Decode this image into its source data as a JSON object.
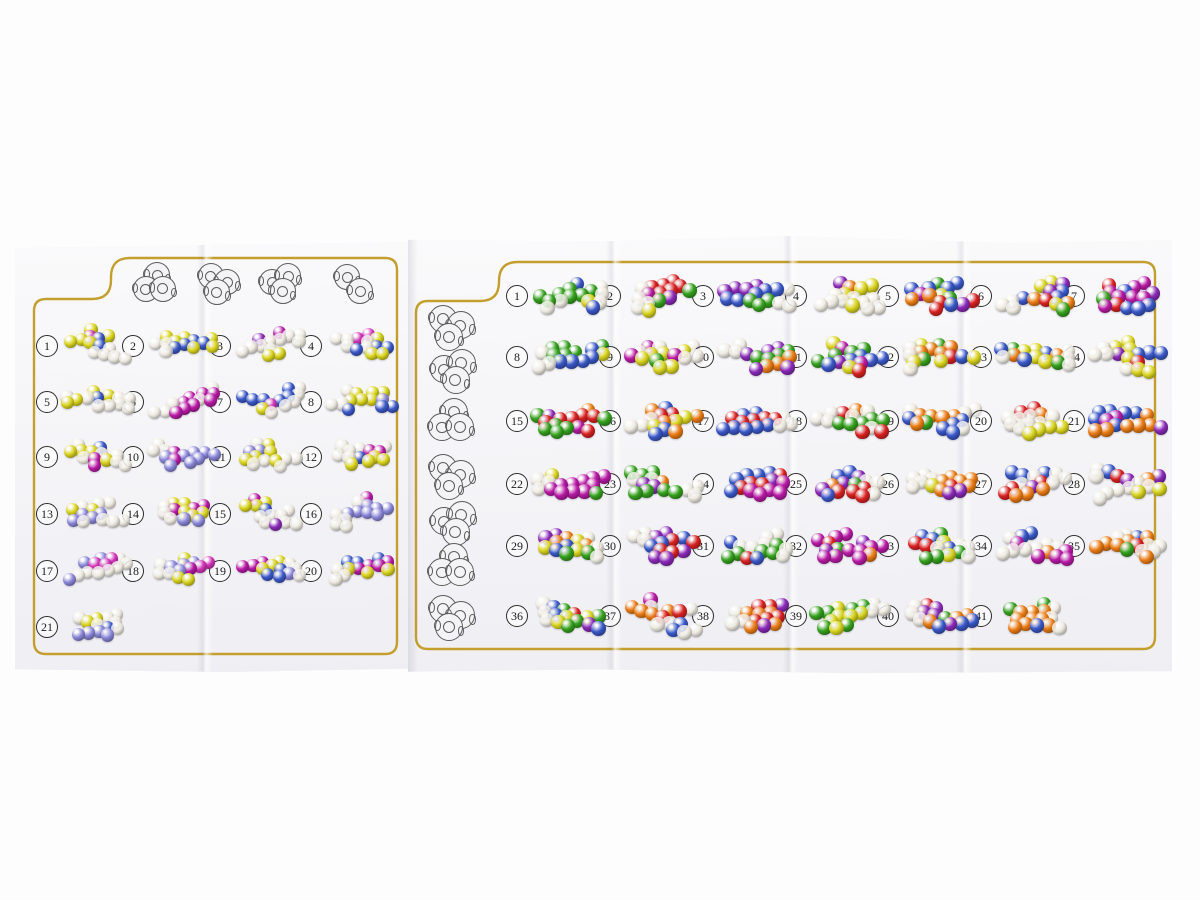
{
  "photo": {
    "background": "#fdfdfd"
  },
  "paper": {
    "color": "#f4f3f6",
    "border_color": "#c49f2e"
  },
  "palette": {
    "yellow": "#d9d41e",
    "magenta": "#b81aa5",
    "pink": "#d233b8",
    "blue": "#3a58c8",
    "periwinkle": "#8b87d9",
    "clear": "#eeeae0",
    "purple": "#8a2ab8",
    "red": "#d92121",
    "orange": "#ea7b13",
    "green": "#35a11d"
  },
  "left_panel": {
    "outline_clusters": [
      3,
      3,
      3,
      2
    ],
    "items": [
      {
        "n": "1",
        "colors": [
          "yellow",
          "magenta",
          "pink",
          "blue",
          "clear"
        ]
      },
      {
        "n": "2",
        "colors": [
          "blue",
          "yellow",
          "periwinkle",
          "magenta",
          "clear"
        ]
      },
      {
        "n": "3",
        "colors": [
          "clear",
          "yellow",
          "magenta",
          "blue",
          "purple"
        ]
      },
      {
        "n": "4",
        "colors": [
          "magenta",
          "blue",
          "yellow",
          "clear",
          "pink"
        ]
      },
      {
        "n": "5",
        "colors": [
          "clear",
          "yellow",
          "magenta",
          "blue",
          "periwinkle"
        ]
      },
      {
        "n": "6",
        "colors": [
          "yellow",
          "magenta",
          "blue",
          "periwinkle",
          "clear"
        ]
      },
      {
        "n": "7",
        "colors": [
          "yellow",
          "clear",
          "magenta",
          "blue",
          "pink"
        ]
      },
      {
        "n": "8",
        "colors": [
          "blue",
          "yellow",
          "magenta",
          "periwinkle",
          "clear"
        ]
      },
      {
        "n": "9",
        "colors": [
          "magenta",
          "periwinkle",
          "blue",
          "yellow",
          "clear"
        ]
      },
      {
        "n": "10",
        "colors": [
          "magenta",
          "yellow",
          "blue",
          "periwinkle",
          "clear"
        ]
      },
      {
        "n": "11",
        "colors": [
          "yellow",
          "clear",
          "magenta",
          "blue",
          "periwinkle"
        ]
      },
      {
        "n": "12",
        "colors": [
          "blue",
          "yellow",
          "pink",
          "magenta",
          "clear"
        ]
      },
      {
        "n": "13",
        "colors": [
          "blue",
          "magenta",
          "yellow",
          "periwinkle",
          "clear"
        ]
      },
      {
        "n": "14",
        "colors": [
          "magenta",
          "clear",
          "periwinkle",
          "yellow",
          "pink"
        ]
      },
      {
        "n": "15",
        "colors": [
          "blue",
          "yellow",
          "magenta",
          "clear",
          "purple"
        ]
      },
      {
        "n": "16",
        "colors": [
          "clear",
          "yellow",
          "magenta",
          "blue",
          "periwinkle"
        ]
      },
      {
        "n": "17",
        "colors": [
          "yellow",
          "magenta",
          "periwinkle",
          "clear",
          "pink"
        ]
      },
      {
        "n": "18",
        "colors": [
          "clear",
          "yellow",
          "periwinkle",
          "magenta",
          "pink"
        ]
      },
      {
        "n": "19",
        "colors": [
          "clear",
          "yellow",
          "magenta",
          "blue",
          "periwinkle"
        ]
      },
      {
        "n": "20",
        "colors": [
          "clear",
          "blue",
          "yellow",
          "magenta",
          "periwinkle"
        ]
      },
      {
        "n": "21",
        "colors": [
          "yellow",
          "clear",
          "magenta",
          "periwinkle",
          "blue"
        ]
      }
    ]
  },
  "right_panel": {
    "outline_clusters": [
      3,
      3,
      3,
      3,
      3,
      3,
      3
    ],
    "items": [
      {
        "n": "1",
        "colors": [
          "green",
          "orange",
          "red",
          "purple",
          "yellow",
          "blue",
          "clear"
        ]
      },
      {
        "n": "2",
        "colors": [
          "blue",
          "yellow",
          "green",
          "red",
          "purple",
          "magenta",
          "clear"
        ]
      },
      {
        "n": "3",
        "colors": [
          "clear",
          "yellow",
          "purple",
          "orange",
          "blue",
          "green",
          "red"
        ]
      },
      {
        "n": "4",
        "colors": [
          "red",
          "orange",
          "yellow",
          "purple",
          "green",
          "clear",
          "blue"
        ]
      },
      {
        "n": "5",
        "colors": [
          "blue",
          "green",
          "orange",
          "magenta",
          "purple",
          "yellow",
          "red"
        ]
      },
      {
        "n": "6",
        "colors": [
          "clear",
          "yellow",
          "blue",
          "red",
          "green",
          "purple",
          "orange"
        ]
      },
      {
        "n": "7",
        "colors": [
          "red",
          "green",
          "yellow",
          "blue",
          "purple",
          "magenta",
          "orange"
        ]
      },
      {
        "n": "8",
        "colors": [
          "magenta",
          "green",
          "orange",
          "red",
          "yellow",
          "blue",
          "clear"
        ]
      },
      {
        "n": "9",
        "colors": [
          "red",
          "orange",
          "yellow",
          "blue",
          "magenta",
          "green",
          "clear"
        ]
      },
      {
        "n": "10",
        "colors": [
          "orange",
          "green",
          "purple",
          "yellow",
          "clear",
          "blue",
          "red"
        ]
      },
      {
        "n": "11",
        "colors": [
          "red",
          "magenta",
          "orange",
          "yellow",
          "purple",
          "green",
          "blue"
        ]
      },
      {
        "n": "12",
        "colors": [
          "magenta",
          "yellow",
          "green",
          "blue",
          "orange",
          "red",
          "clear"
        ]
      },
      {
        "n": "13",
        "colors": [
          "green",
          "orange",
          "blue",
          "red",
          "yellow",
          "purple",
          "clear"
        ]
      },
      {
        "n": "14",
        "colors": [
          "purple",
          "magenta",
          "green",
          "red",
          "blue",
          "yellow",
          "clear"
        ]
      },
      {
        "n": "15",
        "colors": [
          "orange",
          "yellow",
          "red",
          "purple",
          "blue",
          "green",
          "magenta"
        ]
      },
      {
        "n": "16",
        "colors": [
          "clear",
          "green",
          "red",
          "blue",
          "yellow",
          "orange",
          "purple"
        ]
      },
      {
        "n": "17",
        "colors": [
          "yellow",
          "green",
          "blue",
          "magenta",
          "clear",
          "red",
          "orange"
        ]
      },
      {
        "n": "18",
        "colors": [
          "green",
          "blue",
          "purple",
          "orange",
          "yellow",
          "red",
          "clear"
        ]
      },
      {
        "n": "19",
        "colors": [
          "purple",
          "blue",
          "orange",
          "yellow",
          "green",
          "red",
          "clear"
        ]
      },
      {
        "n": "20",
        "colors": [
          "green",
          "purple",
          "blue",
          "red",
          "orange",
          "yellow",
          "clear"
        ]
      },
      {
        "n": "21",
        "colors": [
          "blue",
          "yellow",
          "magenta",
          "purple",
          "green",
          "orange",
          "red"
        ]
      },
      {
        "n": "22",
        "colors": [
          "yellow",
          "orange",
          "green",
          "magenta",
          "purple",
          "blue",
          "clear"
        ]
      },
      {
        "n": "23",
        "colors": [
          "purple",
          "magenta",
          "orange",
          "green",
          "blue",
          "yellow",
          "clear"
        ]
      },
      {
        "n": "24",
        "colors": [
          "green",
          "purple",
          "red",
          "orange",
          "blue",
          "magenta",
          "yellow"
        ]
      },
      {
        "n": "25",
        "colors": [
          "purple",
          "blue",
          "green",
          "red",
          "yellow",
          "orange",
          "clear"
        ]
      },
      {
        "n": "26",
        "colors": [
          "blue",
          "yellow",
          "orange",
          "red",
          "purple",
          "green",
          "clear"
        ]
      },
      {
        "n": "27",
        "colors": [
          "clear",
          "yellow",
          "purple",
          "red",
          "blue",
          "green",
          "orange"
        ]
      },
      {
        "n": "28",
        "colors": [
          "green",
          "orange",
          "yellow",
          "purple",
          "red",
          "blue",
          "clear"
        ]
      },
      {
        "n": "29",
        "colors": [
          "green",
          "yellow",
          "red",
          "blue",
          "purple",
          "orange",
          "clear"
        ]
      },
      {
        "n": "30",
        "colors": [
          "blue",
          "red",
          "yellow",
          "purple",
          "orange",
          "green",
          "clear"
        ]
      },
      {
        "n": "31",
        "colors": [
          "yellow",
          "orange",
          "red",
          "green",
          "blue",
          "purple",
          "clear"
        ]
      },
      {
        "n": "32",
        "colors": [
          "magenta",
          "yellow",
          "orange",
          "green",
          "blue",
          "red",
          "purple"
        ]
      },
      {
        "n": "33",
        "colors": [
          "red",
          "orange",
          "green",
          "yellow",
          "blue",
          "purple",
          "clear"
        ]
      },
      {
        "n": "34",
        "colors": [
          "blue",
          "green",
          "yellow",
          "orange",
          "red",
          "magenta",
          "clear"
        ]
      },
      {
        "n": "35",
        "colors": [
          "green",
          "magenta",
          "purple",
          "blue",
          "red",
          "orange",
          "clear"
        ]
      },
      {
        "n": "36",
        "colors": [
          "green",
          "yellow",
          "orange",
          "blue",
          "purple",
          "red",
          "clear"
        ]
      },
      {
        "n": "37",
        "colors": [
          "yellow",
          "orange",
          "green",
          "red",
          "blue",
          "magenta",
          "clear"
        ]
      },
      {
        "n": "38",
        "colors": [
          "purple",
          "yellow",
          "green",
          "orange",
          "blue",
          "red",
          "clear"
        ]
      },
      {
        "n": "39",
        "colors": [
          "yellow",
          "red",
          "green",
          "orange",
          "blue",
          "purple",
          "clear"
        ]
      },
      {
        "n": "40",
        "colors": [
          "orange",
          "purple",
          "magenta",
          "green",
          "blue",
          "red",
          "clear"
        ]
      },
      {
        "n": "41",
        "colors": [
          "purple",
          "magenta",
          "red",
          "green",
          "blue",
          "orange",
          "clear"
        ]
      }
    ]
  }
}
